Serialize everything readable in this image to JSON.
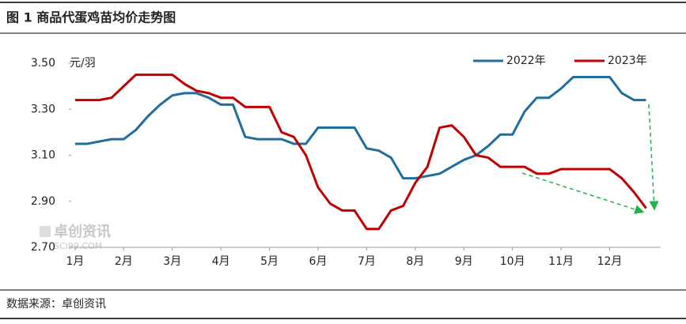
{
  "chart_data": {
    "type": "line",
    "title": "图 1 商品代蛋鸡苗均价走势图",
    "y_unit": "元/羽",
    "source": "数据来源：卓创资讯",
    "watermark": [
      "卓创资讯",
      "SCI99.COM"
    ],
    "legend": "top-right",
    "grid": false,
    "x": [
      1,
      1.25,
      1.5,
      1.75,
      2,
      2.25,
      2.5,
      2.75,
      3,
      3.25,
      3.5,
      3.75,
      4,
      4.25,
      4.5,
      4.75,
      5,
      5.25,
      5.5,
      5.75,
      6,
      6.25,
      6.5,
      6.75,
      7,
      7.25,
      7.5,
      7.75,
      8,
      8.25,
      8.5,
      8.75,
      9,
      9.25,
      9.5,
      9.75,
      10,
      10.25,
      10.5,
      10.75,
      11,
      11.25,
      11.5,
      11.75,
      12,
      12.25,
      12.5,
      12.75
    ],
    "xlim": [
      0.92,
      13.05
    ],
    "xticks": [
      {
        "value": 1,
        "label": "1月"
      },
      {
        "value": 2,
        "label": "2月"
      },
      {
        "value": 3,
        "label": "3月"
      },
      {
        "value": 4,
        "label": "4月"
      },
      {
        "value": 5,
        "label": "5月"
      },
      {
        "value": 6,
        "label": "6月"
      },
      {
        "value": 7,
        "label": "7月"
      },
      {
        "value": 8,
        "label": "8月"
      },
      {
        "value": 9,
        "label": "9月"
      },
      {
        "value": 10,
        "label": "10月"
      },
      {
        "value": 11,
        "label": "11月"
      },
      {
        "value": 12,
        "label": "12月"
      }
    ],
    "ylim": [
      2.7,
      3.5
    ],
    "yticks": [
      {
        "value": 2.7,
        "label": "2.70"
      },
      {
        "value": 2.9,
        "label": "2.90"
      },
      {
        "value": 3.1,
        "label": "3.10"
      },
      {
        "value": 3.3,
        "label": "3.30"
      },
      {
        "value": 3.5,
        "label": "3.50"
      }
    ],
    "series": [
      {
        "name": "2022年",
        "color": "#1f6e9c",
        "values": [
          3.15,
          3.15,
          3.16,
          3.17,
          3.17,
          3.21,
          3.27,
          3.32,
          3.36,
          3.37,
          3.37,
          3.35,
          3.32,
          3.32,
          3.18,
          3.17,
          3.17,
          3.17,
          3.15,
          3.15,
          3.22,
          3.22,
          3.22,
          3.22,
          3.13,
          3.12,
          3.09,
          3.0,
          3.0,
          3.01,
          3.02,
          3.05,
          3.08,
          3.1,
          3.14,
          3.19,
          3.19,
          3.29,
          3.35,
          3.35,
          3.39,
          3.44,
          3.44,
          3.44,
          3.44,
          3.37,
          3.34,
          3.34
        ]
      },
      {
        "name": "2023年",
        "color": "#c00000",
        "values": [
          3.34,
          3.34,
          3.34,
          3.35,
          3.4,
          3.45,
          3.45,
          3.45,
          3.45,
          3.41,
          3.38,
          3.37,
          3.35,
          3.35,
          3.31,
          3.31,
          3.31,
          3.2,
          3.18,
          3.1,
          2.96,
          2.89,
          2.86,
          2.86,
          2.78,
          2.78,
          2.86,
          2.88,
          2.98,
          3.05,
          3.22,
          3.23,
          3.18,
          3.1,
          3.09,
          3.05,
          3.05,
          3.05,
          3.02,
          3.02,
          3.04,
          3.04,
          3.04,
          3.04,
          3.04,
          3.0,
          2.94,
          2.87
        ]
      }
    ]
  }
}
